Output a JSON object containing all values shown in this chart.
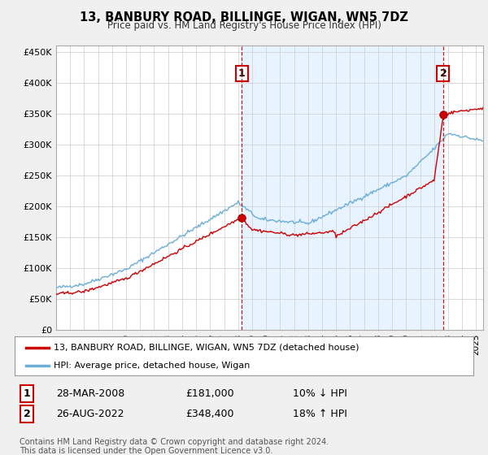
{
  "title": "13, BANBURY ROAD, BILLINGE, WIGAN, WN5 7DZ",
  "subtitle": "Price paid vs. HM Land Registry's House Price Index (HPI)",
  "yticks": [
    0,
    50000,
    100000,
    150000,
    200000,
    250000,
    300000,
    350000,
    400000,
    450000
  ],
  "ytick_labels": [
    "£0",
    "£50K",
    "£100K",
    "£150K",
    "£200K",
    "£250K",
    "£300K",
    "£350K",
    "£400K",
    "£450K"
  ],
  "sale1_year": 2008.25,
  "sale1_price": 181000,
  "sale1_label": "1",
  "sale1_date": "28-MAR-2008",
  "sale1_amount": "£181,000",
  "sale1_hpi": "10% ↓ HPI",
  "sale2_year": 2022.65,
  "sale2_price": 348400,
  "sale2_label": "2",
  "sale2_date": "26-AUG-2022",
  "sale2_amount": "£348,400",
  "sale2_hpi": "18% ↑ HPI",
  "red_color": "#cc0000",
  "blue_color": "#6baed6",
  "shade_color": "#ddeeff",
  "legend_label1": "13, BANBURY ROAD, BILLINGE, WIGAN, WN5 7DZ (detached house)",
  "legend_label2": "HPI: Average price, detached house, Wigan",
  "footer": "Contains HM Land Registry data © Crown copyright and database right 2024.\nThis data is licensed under the Open Government Licence v3.0.",
  "bg_color": "#f0f0f0",
  "plot_bg_color": "#ffffff",
  "grid_color": "#cccccc"
}
